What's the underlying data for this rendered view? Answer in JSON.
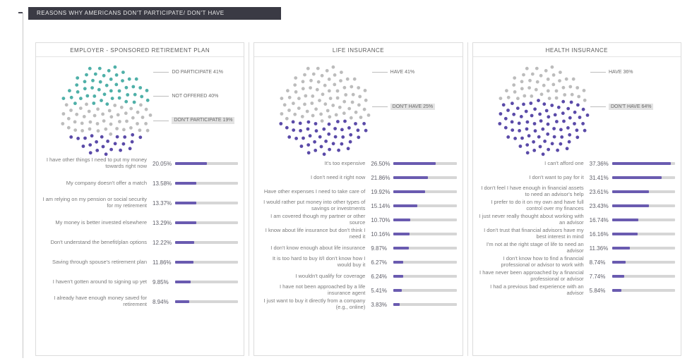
{
  "title": "REASONS WHY AMERICANS DON'T PARTICIPATE/ DON'T HAVE",
  "colors": {
    "title_bg": "#3a3a44",
    "panel_border": "#dcdcdc",
    "bar_track": "#d6d6d6",
    "bar_fill": "#6a5bb0",
    "text": "#6a6a6a",
    "dot_palette": [
      "#4fb0a8",
      "#bcbcbc",
      "#5a4aa8"
    ]
  },
  "panels": [
    {
      "title": "EMPLOYER - SPONSORED RETIREMENT PLAN",
      "segments": [
        {
          "label": "DO PARTICIPATE 41%",
          "pct": 41,
          "color": "#4fb0a8",
          "highlight": false
        },
        {
          "label": "NOT OFFERED 40%",
          "pct": 40,
          "color": "#bcbcbc",
          "highlight": false
        },
        {
          "label": "DON'T PARTICIPATE 19%",
          "pct": 19,
          "color": "#5a4aa8",
          "highlight": true
        }
      ],
      "bar_max": 40,
      "bars": [
        {
          "label": "I have other things I need to put my money towards right now",
          "pct": 20.05
        },
        {
          "label": "My company doesn't offer a match",
          "pct": 13.58
        },
        {
          "label": "I am relying on my pension or social security for my retirement",
          "pct": 13.37
        },
        {
          "label": "My money is better invested elsewhere",
          "pct": 13.29
        },
        {
          "label": "Don't understand the benefit/plan options",
          "pct": 12.22
        },
        {
          "label": "Saving through spouse's retirement plan",
          "pct": 11.86
        },
        {
          "label": "I haven't gotten around to signing up yet",
          "pct": 9.85
        },
        {
          "label": "I already have enough money saved for retirement",
          "pct": 8.94
        }
      ]
    },
    {
      "title": "LIFE INSURANCE",
      "segments": [
        {
          "label": "HAVE 41%",
          "pct": 41,
          "color": "#bcbcbc",
          "highlight": false
        },
        {
          "label": "DON'T HAVE 25%",
          "pct": 25,
          "color": "#5a4aa8",
          "highlight": true
        }
      ],
      "bar_max": 40,
      "bars": [
        {
          "label": "It's too expensive",
          "pct": 26.5
        },
        {
          "label": "I don't need it right now",
          "pct": 21.86
        },
        {
          "label": "Have other expenses I need to take care of",
          "pct": 19.92
        },
        {
          "label": "I would rather put money into other types of savings or investments",
          "pct": 15.14
        },
        {
          "label": "I am covered though my partner or other source",
          "pct": 10.7
        },
        {
          "label": "I know about life insurance but don't think I need it",
          "pct": 10.16
        },
        {
          "label": "I don't know enough about life insurance",
          "pct": 9.87
        },
        {
          "label": "It is too hard to buy it/I don't know how I would buy it",
          "pct": 6.27
        },
        {
          "label": "I wouldn't qualify for coverage",
          "pct": 6.24
        },
        {
          "label": "I have not been approached by a life insurance agent",
          "pct": 5.41
        },
        {
          "label": "I just want to buy it directly from a company (e.g., online)",
          "pct": 3.83
        }
      ]
    },
    {
      "title": "HEALTH INSURANCE",
      "segments": [
        {
          "label": "HAVE 36%",
          "pct": 36,
          "color": "#bcbcbc",
          "highlight": false
        },
        {
          "label": "DON'T HAVE 64%",
          "pct": 64,
          "color": "#5a4aa8",
          "highlight": true
        }
      ],
      "bar_max": 40,
      "bars": [
        {
          "label": "I can't afford one",
          "pct": 37.36
        },
        {
          "label": "I don't want to pay for it",
          "pct": 31.41
        },
        {
          "label": "I don't feel I have enough in financial assets to need an advisor's help",
          "pct": 23.61
        },
        {
          "label": "I prefer to do it on my own and have full control over my finances",
          "pct": 23.43
        },
        {
          "label": "I just never really thought about working with an advisor",
          "pct": 16.74
        },
        {
          "label": "I don't trust that financial advisors have my best interest in mind",
          "pct": 16.16
        },
        {
          "label": "I'm not at the right stage of life to need an advisor",
          "pct": 11.36
        },
        {
          "label": "I don't know how to find a financial professional or advisor to work with",
          "pct": 8.74
        },
        {
          "label": "I have never been approached by a financial professional or advisor",
          "pct": 7.74
        },
        {
          "label": "I had a previous bad experience with an advisor",
          "pct": 5.84
        }
      ]
    }
  ]
}
